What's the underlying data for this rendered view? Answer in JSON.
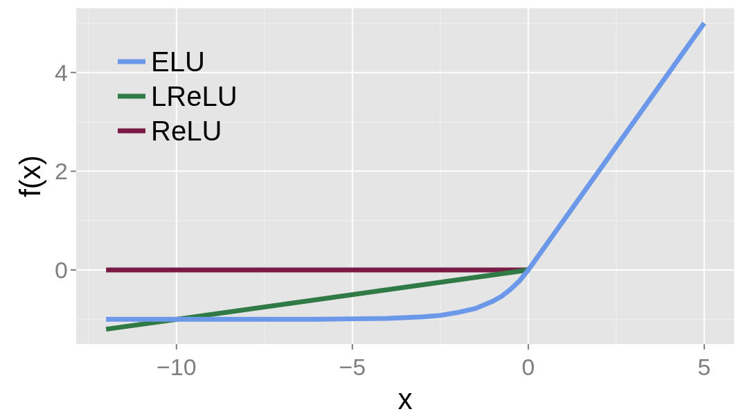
{
  "chart_data": {
    "type": "line",
    "xlabel": "x",
    "ylabel": "f(x)",
    "xlim": [
      -12.85,
      5.85
    ],
    "ylim": [
      -1.5,
      5.3
    ],
    "xticks": [
      {
        "value": -10,
        "label": "−10"
      },
      {
        "value": -5,
        "label": "−5"
      },
      0,
      5
    ],
    "yticks": [
      0,
      2,
      4
    ],
    "grid": true,
    "legend": "top left",
    "line_style": "solid",
    "marker": "none",
    "series": [
      {
        "name": "ELU",
        "color": "#6b98e8",
        "x": [
          -12,
          -10,
          -8,
          -6,
          -5,
          -4,
          -3,
          -2.5,
          -2,
          -1.5,
          -1,
          -0.75,
          -0.5,
          -0.25,
          0,
          5
        ],
        "values": [
          -1,
          -1,
          -1,
          -1,
          -0.99,
          -0.98,
          -0.95,
          -0.92,
          -0.86,
          -0.78,
          -0.63,
          -0.53,
          -0.39,
          -0.22,
          0,
          5
        ]
      },
      {
        "name": "LReLU",
        "color": "#2f7a45",
        "x": [
          -12,
          0
        ],
        "values": [
          -1.2,
          0
        ]
      },
      {
        "name": "ReLU",
        "color": "#7b1a47",
        "x": [
          -12,
          0
        ],
        "values": [
          0,
          0
        ]
      }
    ]
  }
}
